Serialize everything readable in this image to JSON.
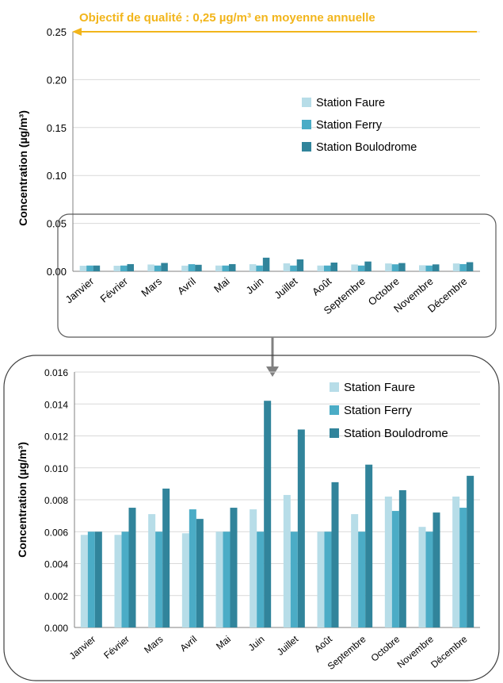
{
  "annotation": {
    "objective_label": "Objectif de qualité : 0,25 µg/m³ en moyenne annuelle",
    "objective_value": 0.25,
    "color": "#f2b51b"
  },
  "colors": {
    "faure": "#b7dde8",
    "ferry": "#4bacc6",
    "boulodrome": "#31849b",
    "grid": "#d9d9d9",
    "axis": "#808080",
    "arrow": "#808080"
  },
  "chart_data": [
    {
      "type": "bar",
      "categories": [
        "Janvier",
        "Février",
        "Mars",
        "Avril",
        "Mai",
        "Juin",
        "Juillet",
        "Août",
        "Septembre",
        "Octobre",
        "Novembre",
        "Décembre"
      ],
      "series": [
        {
          "name": "Station Faure",
          "values": [
            0.0058,
            0.0058,
            0.0071,
            0.0059,
            0.006,
            0.0074,
            0.0083,
            0.006,
            0.0071,
            0.0082,
            0.0063,
            0.0082
          ]
        },
        {
          "name": "Station Ferry",
          "values": [
            0.006,
            0.006,
            0.006,
            0.0074,
            0.006,
            0.006,
            0.006,
            0.006,
            0.006,
            0.0073,
            0.006,
            0.0075
          ]
        },
        {
          "name": "Station Boulodrome",
          "values": [
            0.006,
            0.0075,
            0.0087,
            0.0068,
            0.0075,
            0.0142,
            0.0124,
            0.0091,
            0.0102,
            0.0086,
            0.0072,
            0.0095
          ]
        }
      ],
      "ylabel": "Concentration (µg/m³)",
      "ylim": [
        0,
        0.25
      ],
      "yticks": [
        "0.00",
        "0.05",
        "0.10",
        "0.15",
        "0.20",
        "0.25"
      ],
      "grid": true,
      "legend": "top-right"
    },
    {
      "type": "bar",
      "categories": [
        "Janvier",
        "Février",
        "Mars",
        "Avril",
        "Mai",
        "Juin",
        "Juillet",
        "Août",
        "Septembre",
        "Octobre",
        "Novembre",
        "Décembre"
      ],
      "series": [
        {
          "name": "Station Faure",
          "values": [
            0.0058,
            0.0058,
            0.0071,
            0.0059,
            0.006,
            0.0074,
            0.0083,
            0.006,
            0.0071,
            0.0082,
            0.0063,
            0.0082
          ]
        },
        {
          "name": "Station Ferry",
          "values": [
            0.006,
            0.006,
            0.006,
            0.0074,
            0.006,
            0.006,
            0.006,
            0.006,
            0.006,
            0.0073,
            0.006,
            0.0075
          ]
        },
        {
          "name": "Station Boulodrome",
          "values": [
            0.006,
            0.0075,
            0.0087,
            0.0068,
            0.0075,
            0.0142,
            0.0124,
            0.0091,
            0.0102,
            0.0086,
            0.0072,
            0.0095
          ]
        }
      ],
      "ylabel": "Concentration (µg/m³)",
      "ylim": [
        0,
        0.016
      ],
      "yticks": [
        "0.000",
        "0.002",
        "0.004",
        "0.006",
        "0.008",
        "0.010",
        "0.012",
        "0.014",
        "0.016"
      ],
      "grid": true,
      "legend": "top-right"
    }
  ]
}
